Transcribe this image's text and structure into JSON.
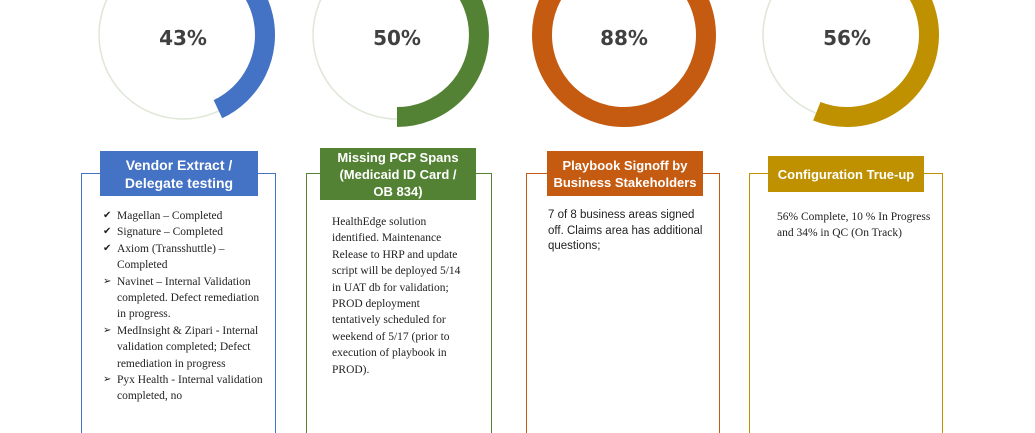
{
  "colors": {
    "track": "#dfe7d8",
    "blue": "#4472c4",
    "green": "#548235",
    "orange": "#c55a11",
    "gold": "#bf9000"
  },
  "items": [
    {
      "percent_label": "43%",
      "percent": 43,
      "title": "Vendor Extract /\nDelegate testing",
      "list": [
        {
          "marker": "check-icon",
          "text": "Magellan – Completed"
        },
        {
          "marker": "check-icon",
          "text": "Signature – Completed"
        },
        {
          "marker": "check-icon",
          "text": "Axiom (Transshuttle) – Completed"
        },
        {
          "marker": "arrow-icon",
          "text": "Navinet – Internal Validation completed. Defect remediation in progress."
        },
        {
          "marker": "arrow-icon",
          "text": "MedInsight & Zipari - Internal validation completed; Defect remediation in progress"
        },
        {
          "marker": "arrow-icon",
          "text": "Pyx Health - Internal validation completed, no"
        }
      ]
    },
    {
      "percent_label": "50%",
      "percent": 50,
      "title": "Missing PCP Spans\n(Medicaid ID Card /\nOB 834)",
      "text": "HealthEdge solution identified. Maintenance Release to HRP and update script will be deployed 5/14 in UAT db for validation; PROD deployment tentatively scheduled for weekend of 5/17 (prior to execution of playbook in PROD)."
    },
    {
      "percent_label": "88%",
      "percent": 88,
      "title": "Playbook Signoff by\nBusiness Stakeholders",
      "text": "7 of 8 business areas signed off. Claims area has additional questions;"
    },
    {
      "percent_label": "56%",
      "percent": 56,
      "title": "Configuration True-up",
      "text": "56% Complete, 10 % In Progress and 34% in QC (On Track)"
    }
  ]
}
